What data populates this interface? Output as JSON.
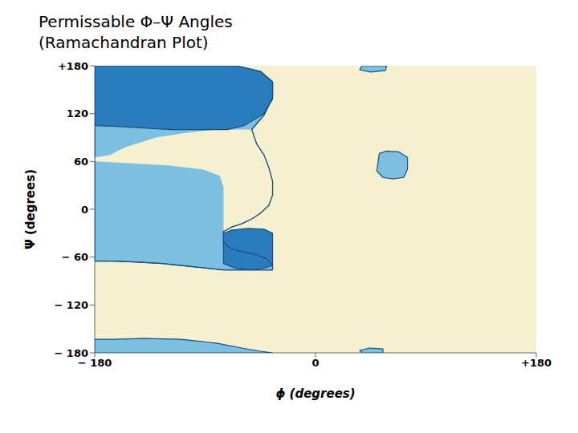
{
  "chart_data": {
    "type": "polygon",
    "title": "Permissable Φ–Ψ Angles",
    "subtitle": "(Ramachandran Plot)",
    "x_label": "ϕ (degrees)",
    "y_label": "Ψ (degrees)",
    "xlim": [
      -180,
      180
    ],
    "ylim": [
      -180,
      180
    ],
    "xticks": [
      {
        "value": -180,
        "label": "− 180"
      },
      0,
      {
        "value": 180,
        "label": "+180"
      }
    ],
    "yticks": [
      {
        "value": -180,
        "label": "− 180"
      },
      {
        "value": -120,
        "label": "− 120"
      },
      {
        "value": -60,
        "label": "− 60"
      },
      0,
      60,
      120,
      {
        "value": 180,
        "label": "+180"
      }
    ],
    "grid": false,
    "color": "#f5f0d0",
    "series": [
      {
        "color": "#7dbfe0",
        "line_style": "solid",
        "x": [
          -180,
          -65,
          -45,
          -35,
          -35,
          -42,
          -52,
          -48,
          -42,
          -38,
          -35,
          -35,
          -38,
          -45,
          -52,
          -60,
          -68,
          -75,
          -75,
          -68,
          -58,
          -48,
          -40,
          -35,
          -35,
          -52,
          -75,
          -100,
          -125,
          -148,
          -165,
          -180,
          -180
        ],
        "values": [
          180,
          180,
          173,
          160,
          140,
          118,
          100,
          82,
          68,
          52,
          35,
          18,
          5,
          -5,
          -12,
          -18,
          -22,
          -28,
          -42,
          -50,
          -54,
          -57,
          -62,
          -70,
          -76,
          -76,
          -76,
          -72,
          -68,
          -66,
          -65,
          -65,
          -65
        ]
      },
      {
        "color": "#7dbfe0",
        "line_style": "solid",
        "x": [
          -180,
          -180,
          -165,
          -140,
          -110,
          -80,
          -60,
          -45,
          -35
        ],
        "values": [
          -180,
          -163,
          -163,
          -162,
          -163,
          -168,
          -174,
          -178,
          -180
        ]
      },
      {
        "color": "#7dbfe0",
        "line_style": "solid",
        "x": [
          52,
          50,
          55,
          63,
          72,
          75,
          75,
          68,
          58
        ],
        "values": [
          70,
          48,
          40,
          38,
          40,
          50,
          65,
          72,
          73
        ]
      },
      {
        "color": "#7dbfe0",
        "line_style": "solid",
        "x": [
          38,
          58,
          57,
          45,
          36
        ],
        "values": [
          180,
          180,
          174,
          172,
          175
        ]
      },
      {
        "color": "#7dbfe0",
        "line_style": "solid",
        "x": [
          38,
          55,
          55,
          44,
          36
        ],
        "values": [
          -180,
          -180,
          -175,
          -174,
          -177
        ]
      },
      {
        "color": "#f5f0d0",
        "line_style": "none",
        "x": [
          -180,
          -155,
          -120,
          -92,
          -78,
          -75,
          -75,
          -68,
          -60,
          -52,
          -45,
          -38,
          -35,
          -35,
          -38,
          -42,
          -48,
          -52,
          -80,
          -105,
          -130,
          -155,
          -168,
          -180
        ],
        "values": [
          60,
          58,
          55,
          50,
          42,
          28,
          -28,
          -22,
          -18,
          -12,
          -5,
          5,
          18,
          35,
          52,
          68,
          82,
          100,
          100,
          96,
          90,
          78,
          68,
          65
        ]
      },
      {
        "color": "#2b7bbf",
        "line_style": "solid",
        "x": [
          -180,
          -65,
          -45,
          -35,
          -35,
          -42,
          -58,
          -72,
          -95,
          -118,
          -140,
          -162,
          -180
        ],
        "values": [
          180,
          180,
          173,
          160,
          138,
          120,
          105,
          100,
          100,
          100,
          102,
          104,
          105
        ]
      },
      {
        "color": "#2b7bbf",
        "line_style": "solid",
        "x": [
          -75,
          -75,
          -75,
          -65,
          -52,
          -40,
          -35,
          -35,
          -35,
          -42,
          -55,
          -68
        ],
        "values": [
          -30,
          -45,
          -68,
          -74,
          -76,
          -73,
          -70,
          -45,
          -30,
          -25,
          -24,
          -26
        ]
      },
      {
        "color": "none",
        "line_style": "solid",
        "x": [
          -180,
          -65,
          -45,
          -35,
          -35,
          -42,
          -52,
          -48,
          -42,
          -38,
          -35,
          -35,
          -38,
          -45,
          -52,
          -60,
          -68,
          -75,
          -75,
          -68,
          -58,
          -48,
          -40,
          -35,
          -35,
          -52,
          -75,
          -100,
          -125,
          -148,
          -165,
          -180,
          -180
        ],
        "values": [
          180,
          180,
          173,
          160,
          140,
          118,
          100,
          82,
          68,
          52,
          35,
          18,
          5,
          -5,
          -12,
          -18,
          -22,
          -28,
          -42,
          -50,
          -54,
          -57,
          -62,
          -70,
          -76,
          -76,
          -76,
          -72,
          -68,
          -66,
          -65,
          -65,
          -65
        ]
      }
    ]
  }
}
